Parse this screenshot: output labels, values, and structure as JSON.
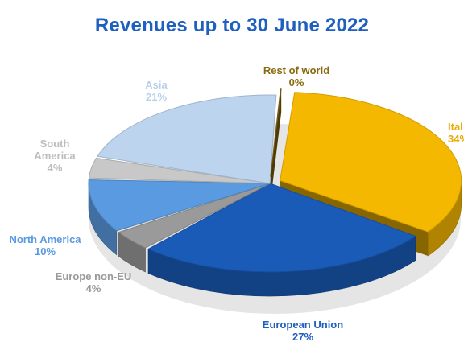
{
  "chart_data": {
    "type": "pie",
    "title": "Revenues up to 30 June 2022",
    "slices": [
      {
        "name": "Italy",
        "label_shown": "Ital",
        "value": 34,
        "value_label": "34%",
        "color": "#f5b800",
        "label_color": "#e8aa00"
      },
      {
        "name": "European Union",
        "value": 27,
        "value_label": "27%",
        "color": "#1a5bb8",
        "label_color": "#1f5fbf"
      },
      {
        "name": "Europe non-EU",
        "label_shown": "Europe non-EU",
        "value": 4,
        "value_label": "4%",
        "color": "#9a9a9a",
        "label_color": "#9a9a9a"
      },
      {
        "name": "North America",
        "value": 10,
        "value_label": "10%",
        "color": "#5a9ae0",
        "label_color": "#5a9ae0"
      },
      {
        "name": "South America",
        "label_lines": [
          "South",
          "America"
        ],
        "value": 4,
        "value_label": "4%",
        "color": "#c8c8c8",
        "label_color": "#bdbdbd"
      },
      {
        "name": "Asia",
        "value": 21,
        "value_label": "21%",
        "color": "#bcd4ee",
        "label_color": "#b9d0ec"
      },
      {
        "name": "Rest of world",
        "value": 0,
        "value_label": "0%",
        "color": "#8a6a10",
        "label_color": "#8a6a10"
      }
    ]
  }
}
